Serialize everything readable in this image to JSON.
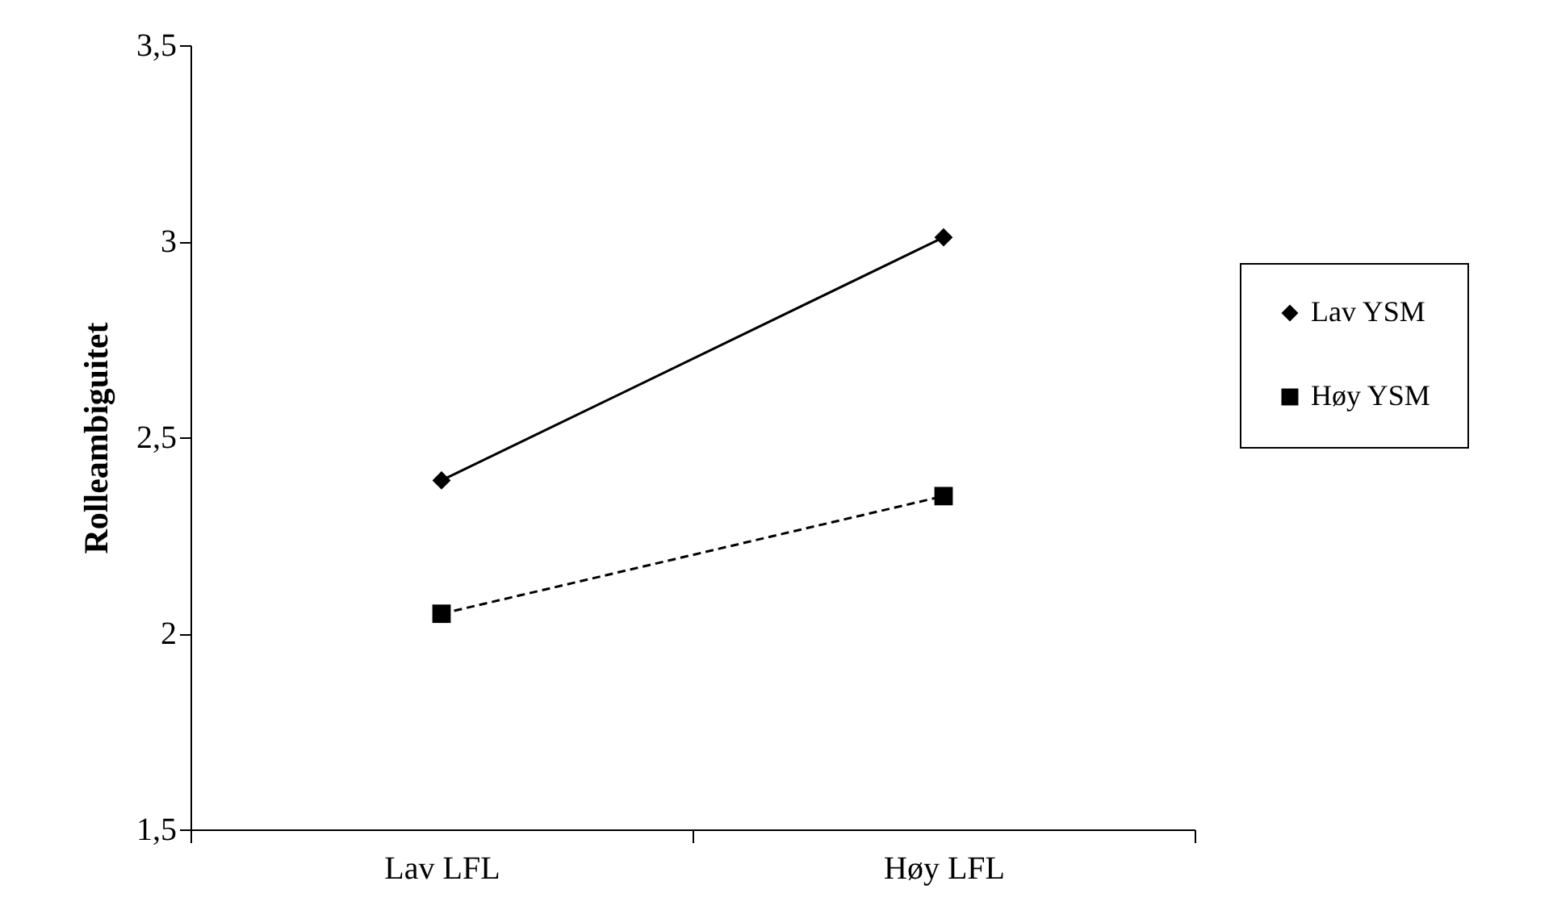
{
  "chart_data": {
    "type": "line",
    "ylabel": "Rolleambiguitet",
    "categories": [
      "Lav LFL",
      "Høy LFL"
    ],
    "series": [
      {
        "name": "Lav YSM",
        "color": "#000000",
        "values": [
          2.39,
          3.01
        ],
        "marker": "diamond",
        "line_style": "solid"
      },
      {
        "name": "Høy YSM",
        "color": "#000000",
        "values": [
          2.05,
          2.35
        ],
        "marker": "square",
        "line_style": "dashed"
      }
    ],
    "ylim": [
      1.5,
      3.5
    ],
    "yticks": [
      {
        "value": 1.5,
        "label": "1,5"
      },
      2,
      {
        "value": 2.5,
        "label": "2,5"
      },
      3,
      {
        "value": 3.5,
        "label": "3,5"
      }
    ],
    "legend": "right"
  }
}
